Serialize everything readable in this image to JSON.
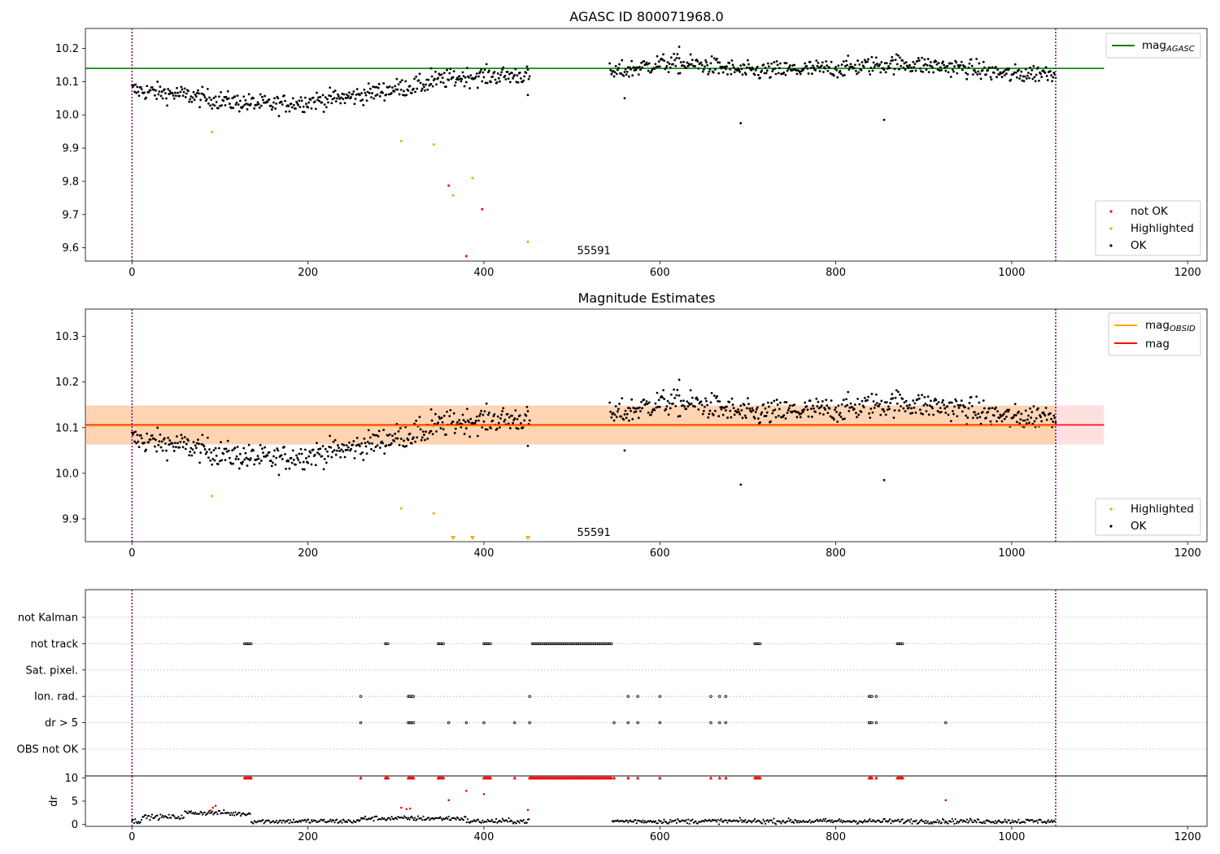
{
  "chart_data": [
    {
      "type": "scatter",
      "title": "AGASC ID 800071968.0",
      "xlim": [
        -53,
        1222
      ],
      "ylim": [
        9.56,
        10.26
      ],
      "xticks": [
        0,
        200,
        400,
        600,
        800,
        1000,
        1200
      ],
      "yticks": [
        9.6,
        9.7,
        9.8,
        9.9,
        10.0,
        10.1,
        10.2
      ],
      "ytick_labels": [
        "9.6",
        "9.7",
        "9.8",
        "9.9",
        "10.0",
        "10.1",
        "10.2"
      ],
      "vlines": [
        0,
        1050
      ],
      "hline": {
        "name": "mag",
        "subscript": "AGASC",
        "value": 10.14,
        "x_range": [
          -53,
          1105
        ],
        "color": "#008000"
      },
      "annotation": {
        "text": "55591",
        "x": 525,
        "y": 9.59
      },
      "legend_loc": "lower right",
      "legend_top_loc": "upper right",
      "legend": [
        "not OK",
        "Highlighted",
        "OK"
      ],
      "gap": [
        452,
        543
      ],
      "ok_trend": [
        [
          0,
          10.075
        ],
        [
          60,
          10.06
        ],
        [
          110,
          10.04
        ],
        [
          160,
          10.03
        ],
        [
          200,
          10.04
        ],
        [
          250,
          10.055
        ],
        [
          300,
          10.08
        ],
        [
          330,
          10.09
        ],
        [
          350,
          10.105
        ],
        [
          380,
          10.115
        ],
        [
          452,
          10.12
        ],
        [
          543,
          10.125
        ],
        [
          600,
          10.155
        ],
        [
          650,
          10.15
        ],
        [
          700,
          10.13
        ],
        [
          800,
          10.14
        ],
        [
          870,
          10.155
        ],
        [
          950,
          10.14
        ],
        [
          1000,
          10.12
        ],
        [
          1050,
          10.13
        ]
      ],
      "ok_outliers": [
        [
          450,
          10.06
        ],
        [
          560,
          10.05
        ],
        [
          692,
          9.975
        ],
        [
          855,
          9.985
        ],
        [
          340,
          10.14
        ],
        [
          622,
          10.205
        ]
      ],
      "highlighted": [
        [
          91,
          9.948
        ],
        [
          306,
          9.921
        ],
        [
          343,
          9.911
        ],
        [
          365,
          9.758
        ],
        [
          387,
          9.81
        ],
        [
          450,
          9.618
        ]
      ],
      "not_ok": [
        [
          360,
          9.787
        ],
        [
          380,
          9.575
        ],
        [
          398,
          9.716
        ]
      ],
      "colors": {
        "ok": "#000000",
        "highlighted": "#ffa500",
        "not_ok": "#ff0000",
        "vline": "#800080"
      }
    },
    {
      "type": "scatter",
      "title": "Magnitude Estimates",
      "xlim": [
        -53,
        1222
      ],
      "ylim": [
        9.85,
        10.36
      ],
      "xticks": [
        0,
        200,
        400,
        600,
        800,
        1000,
        1200
      ],
      "yticks": [
        9.9,
        10.0,
        10.1,
        10.2,
        10.3
      ],
      "ytick_labels": [
        "9.9",
        "10.0",
        "10.1",
        "10.2",
        "10.3"
      ],
      "vlines": [
        0,
        1050
      ],
      "mag_line": {
        "name": "mag",
        "value": 10.106,
        "color": "#ff0000"
      },
      "mag_obsid": {
        "name": "mag",
        "subscript": "OBSID",
        "value": 10.104,
        "color": "#ffa500"
      },
      "mag_band": [
        10.063,
        10.149
      ],
      "obsid_band": [
        10.063,
        10.148
      ],
      "annotation": {
        "text": "55591",
        "x": 525,
        "y": 9.87
      },
      "legend_loc": "lower right",
      "legend_top_loc": "upper right",
      "legend": [
        "Highlighted",
        "OK"
      ],
      "highlighted": [
        [
          91,
          9.95
        ],
        [
          306,
          9.923
        ],
        [
          343,
          9.912
        ]
      ],
      "highlighted_offscale": [
        365,
        387,
        450
      ],
      "colors": {
        "ok": "#000000",
        "highlighted": "#ffa500"
      }
    },
    {
      "type": "scatter",
      "title": "",
      "xlim": [
        -53,
        1222
      ],
      "categories": [
        "not Kalman",
        "not track",
        "Sat. pixel.",
        "Ion. rad.",
        "dr > 5",
        "OBS not OK"
      ],
      "flags": {
        "not track": [
          [
            128,
            136
          ],
          [
            288,
            292
          ],
          [
            348,
            354
          ],
          [
            400,
            408
          ],
          [
            455,
            545
          ],
          [
            708,
            714
          ],
          [
            870,
            876
          ]
        ],
        "Ion. rad.": [
          [
            260,
            260
          ],
          [
            314,
            320
          ],
          [
            452,
            452
          ],
          [
            564,
            564
          ],
          [
            575,
            575
          ],
          [
            600,
            600
          ],
          [
            658,
            658
          ],
          [
            668,
            668
          ],
          [
            675,
            675
          ],
          [
            838,
            842
          ],
          [
            846,
            846
          ]
        ],
        "dr > 5": [
          [
            260,
            260
          ],
          [
            314,
            320
          ],
          [
            360,
            360
          ],
          [
            380,
            380
          ],
          [
            400,
            400
          ],
          [
            435,
            435
          ],
          [
            452,
            452
          ],
          [
            548,
            548
          ],
          [
            564,
            564
          ],
          [
            575,
            575
          ],
          [
            600,
            600
          ],
          [
            658,
            658
          ],
          [
            668,
            668
          ],
          [
            675,
            675
          ],
          [
            838,
            842
          ],
          [
            846,
            846
          ],
          [
            925,
            925
          ]
        ]
      },
      "dr_panel": {
        "ylabel": "dr",
        "ylim": [
          -0.4,
          10.4
        ],
        "yticks": [
          0,
          5,
          10
        ],
        "ytick_labels": [
          "0",
          "5",
          "10"
        ],
        "red_points": [
          [
            89,
            3.0
          ],
          [
            92,
            3.6
          ],
          [
            95,
            4.0
          ],
          [
            306,
            3.6
          ],
          [
            312,
            3.3
          ],
          [
            316,
            3.4
          ],
          [
            360,
            5.2
          ],
          [
            380,
            7.2
          ],
          [
            400,
            6.5
          ],
          [
            450,
            3.1
          ],
          [
            925,
            5.2
          ]
        ]
      },
      "vlines": [
        0,
        1050
      ],
      "xticks": [
        0,
        200,
        400,
        600,
        800,
        1000,
        1200
      ]
    }
  ]
}
